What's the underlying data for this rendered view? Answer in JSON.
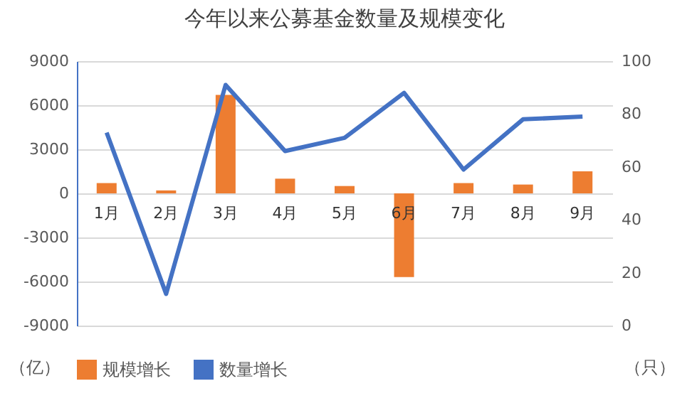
{
  "chart_data": {
    "type": "bar",
    "title": "今年以来公募基金数量及规模变化",
    "categories": [
      "1月",
      "2月",
      "3月",
      "4月",
      "5月",
      "6月",
      "7月",
      "8月",
      "9月"
    ],
    "series": [
      {
        "name": "规模增长",
        "color": "#ed7d31",
        "values": [
          700,
          200,
          6700,
          1000,
          500,
          -5700,
          700,
          600,
          1500
        ]
      },
      {
        "name": "数量增长",
        "type": "line",
        "axis": "y2",
        "color": "#4472c4",
        "values": [
          73,
          12,
          91,
          66,
          71,
          88,
          59,
          78,
          79
        ]
      }
    ],
    "ylabel": "（亿）",
    "y2label": "（只）",
    "ylim": [
      -9000,
      9000
    ],
    "yticks": [
      -9000,
      -6000,
      -3000,
      0,
      3000,
      6000,
      9000
    ],
    "y2lim": [
      0,
      100
    ],
    "y2ticks": [
      0,
      20,
      40,
      60,
      80,
      100
    ],
    "grid": "y",
    "legend": "bottom",
    "marker": "none"
  }
}
